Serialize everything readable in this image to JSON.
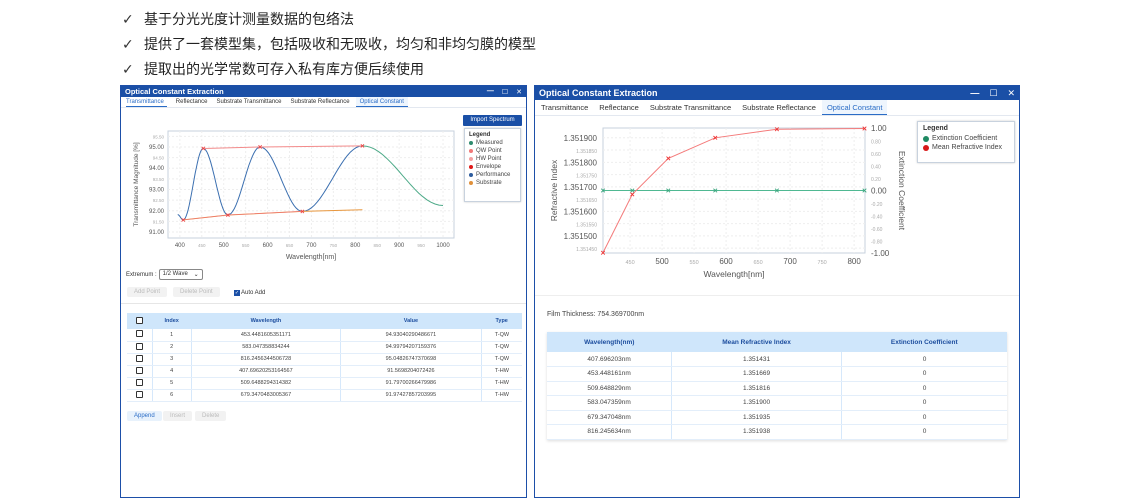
{
  "bullets": [
    "基于分光光度计测量数据的包络法",
    "提供了一套模型集，包括吸收和无吸收，均匀和非均匀膜的模型",
    "提取出的光学常数可存入私有库方便后续使用"
  ],
  "check_icon": "✓",
  "window_title": "Optical Constant Extraction",
  "window_controls": {
    "minimize": "—",
    "maximize": "☐",
    "close": "✕"
  },
  "tabs": [
    "Transmittance",
    "Reflectance",
    "Substrate Transmittance",
    "Substrate Reflectance",
    "Optical Constant"
  ],
  "left": {
    "import_button": "Import Spectrum",
    "legend_title": "Legend",
    "legend": [
      {
        "label": "Measured",
        "color": "#2e8b6e"
      },
      {
        "label": "QW Point",
        "color": "#f07878"
      },
      {
        "label": "HW Point",
        "color": "#f4a0a0"
      },
      {
        "label": "Envelope",
        "color": "#e01818"
      },
      {
        "label": "Performance",
        "color": "#2d5c9e"
      },
      {
        "label": "Substrate",
        "color": "#e0903a"
      }
    ],
    "extremum_label": "Extremum :",
    "extremum_value": "1/2 Wave",
    "add_point": "Add Point",
    "delete_point": "Delete Point",
    "auto_add": "Auto Add",
    "table_headers": [
      "Index",
      "Wavelength",
      "Value",
      "Type"
    ],
    "table_rows": [
      [
        "1",
        "453.4481605351171",
        "94.93040290486671",
        "T-QW"
      ],
      [
        "2",
        "583.047358834244",
        "94.99794207159376",
        "T-QW"
      ],
      [
        "3",
        "816.2456344506728",
        "95.04826747370698",
        "T-QW"
      ],
      [
        "4",
        "407.69620253164567",
        "91.5698204072426",
        "T-HW"
      ],
      [
        "5",
        "509.6488294314382",
        "91.79700266479986",
        "T-HW"
      ],
      [
        "6",
        "679.3470483005367",
        "91.97427857203995",
        "T-HW"
      ]
    ],
    "append": "Append",
    "insert": "Insert",
    "delete": "Delete"
  },
  "right": {
    "legend_title": "Legend",
    "legend": [
      {
        "label": "Extinction Coefficient",
        "color": "#1f8a63"
      },
      {
        "label": "Mean Refractive Index",
        "color": "#d81818"
      }
    ],
    "film_thickness": "Film Thickness: 754.369700nm",
    "table_headers": [
      "Wavelength(nm)",
      "Mean Refractive Index",
      "Extinction Coefficient"
    ],
    "table_rows": [
      [
        "407.696203nm",
        "1.351431",
        "0"
      ],
      [
        "453.448161nm",
        "1.351669",
        "0"
      ],
      [
        "509.648829nm",
        "1.351816",
        "0"
      ],
      [
        "583.047359nm",
        "1.351900",
        "0"
      ],
      [
        "679.347048nm",
        "1.351935",
        "0"
      ],
      [
        "816.245634nm",
        "1.351938",
        "0"
      ]
    ]
  },
  "chart_data": [
    {
      "type": "line",
      "title": "",
      "xlabel": "Wavelength[nm]",
      "ylabel": "Transmittance Magnitude [%]",
      "xlim": [
        373,
        1025
      ],
      "ylim": [
        90.72,
        95.75
      ],
      "xticks": [
        400,
        450,
        500,
        550,
        600,
        650,
        700,
        750,
        800,
        850,
        900,
        950,
        1000
      ],
      "xtick_labels": [
        "400",
        "450",
        "500",
        "550",
        "600",
        "650",
        "700",
        "750",
        "800",
        "850",
        "900",
        "950",
        "1000"
      ],
      "yticks": [
        91,
        91.5,
        92,
        92.5,
        93,
        93.5,
        94,
        94.5,
        95,
        95.5
      ],
      "ytick_labels": [
        "91.00",
        "91.50",
        "92.00",
        "92.50",
        "93.00",
        "93.50",
        "94.00",
        "94.50",
        "95.00",
        "95.50"
      ],
      "extrema": [
        [
          395,
          91.82
        ],
        [
          407.7,
          91.57
        ],
        [
          453.4,
          94.93
        ],
        [
          509.6,
          91.8
        ],
        [
          583.0,
          95.0
        ],
        [
          679.3,
          91.97
        ],
        [
          816.2,
          95.05
        ],
        [
          1000,
          92.25
        ]
      ],
      "qw_points": [
        [
          453.4,
          94.93
        ],
        [
          583.0,
          95.0
        ],
        [
          816.2,
          95.05
        ]
      ],
      "hw_points": [
        [
          407.7,
          91.57
        ],
        [
          509.6,
          91.8
        ],
        [
          679.3,
          91.97
        ]
      ],
      "upper_envelope": [
        [
          453.4,
          94.93
        ],
        [
          583.0,
          95.0
        ],
        [
          816.2,
          95.05
        ]
      ],
      "substrate": [
        [
          407.7,
          91.57
        ],
        [
          509.6,
          91.8
        ],
        [
          679.3,
          91.97
        ],
        [
          816.2,
          92.05
        ]
      ],
      "grid": true
    },
    {
      "type": "line",
      "title": "",
      "xlabel": "Wavelength[nm]",
      "ylabel": "Refractive Index",
      "y2label": "Extinction Coefficient",
      "xlim": [
        407.7,
        817
      ],
      "ylim": [
        1.35143,
        1.35194
      ],
      "y2lim": [
        -1,
        1
      ],
      "xticks": [
        450,
        500,
        550,
        600,
        650,
        700,
        750,
        800
      ],
      "xtick_labels": [
        "450",
        "500",
        "550",
        "600",
        "650",
        "700",
        "750",
        "800"
      ],
      "yticks": [
        1.35145,
        1.3515,
        1.35155,
        1.3516,
        1.35165,
        1.3517,
        1.35175,
        1.3518,
        1.35185,
        1.3519
      ],
      "ytick_labels": [
        "1.351450",
        "1.351500",
        "1.351550",
        "1.351600",
        "1.351650",
        "1.351700",
        "1.351750",
        "1.351800",
        "1.351850",
        "1.351900"
      ],
      "y2ticks": [
        -1,
        -0.8,
        -0.6,
        -0.4,
        -0.2,
        0,
        0.2,
        0.4,
        0.6,
        0.8,
        1
      ],
      "y2tick_labels": [
        "-1.00",
        "-0.80",
        "-0.60",
        "-0.40",
        "-0.20",
        "0.00",
        "0.20",
        "0.40",
        "0.60",
        "0.80",
        "1.00"
      ],
      "series": [
        {
          "name": "Mean Refractive Index",
          "axis": "left",
          "x": [
            407.696,
            453.448,
            509.649,
            583.047,
            679.347,
            816.246
          ],
          "y": [
            1.351431,
            1.351669,
            1.351816,
            1.3519,
            1.351935,
            1.351938
          ]
        },
        {
          "name": "Extinction Coefficient",
          "axis": "right",
          "x": [
            407.696,
            453.448,
            509.649,
            583.047,
            679.347,
            816.246
          ],
          "y": [
            0,
            0,
            0,
            0,
            0,
            0
          ]
        }
      ],
      "grid": true
    }
  ]
}
